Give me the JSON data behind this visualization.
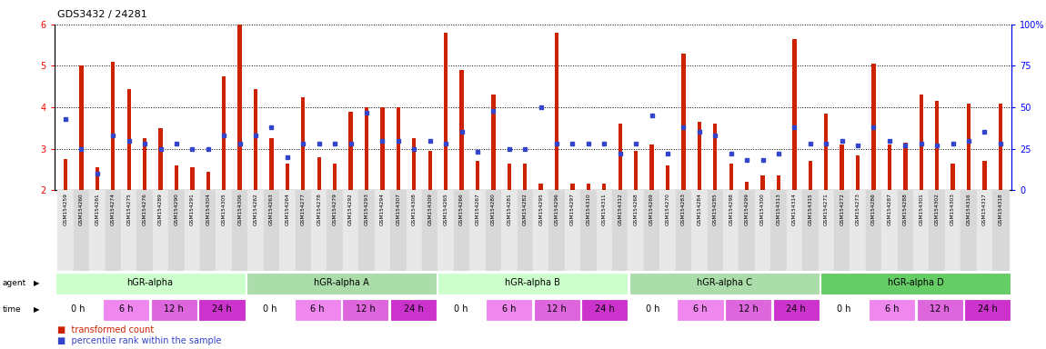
{
  "title": "GDS3432 / 24281",
  "ylim_left": [
    2,
    6
  ],
  "ylim_right": [
    0,
    100
  ],
  "yticks_left": [
    2,
    3,
    4,
    5,
    6
  ],
  "yticks_right": [
    0,
    25,
    50,
    75,
    100
  ],
  "samples": [
    "GSM154259",
    "GSM154260",
    "GSM154261",
    "GSM154274",
    "GSM154275",
    "GSM154276",
    "GSM154289",
    "GSM154290",
    "GSM154291",
    "GSM154304",
    "GSM154305",
    "GSM154306",
    "GSM154262",
    "GSM154263",
    "GSM154264",
    "GSM154277",
    "GSM154278",
    "GSM154279",
    "GSM154292",
    "GSM154293",
    "GSM154294",
    "GSM154307",
    "GSM154308",
    "GSM154309",
    "GSM154265",
    "GSM154266",
    "GSM154267",
    "GSM154280",
    "GSM154281",
    "GSM154282",
    "GSM154295",
    "GSM154296",
    "GSM154297",
    "GSM154310",
    "GSM154311",
    "GSM154312",
    "GSM154268",
    "GSM154269",
    "GSM154270",
    "GSM154283",
    "GSM154284",
    "GSM154285",
    "GSM154298",
    "GSM154299",
    "GSM154300",
    "GSM154313",
    "GSM154314",
    "GSM154315",
    "GSM154271",
    "GSM154272",
    "GSM154273",
    "GSM154286",
    "GSM154287",
    "GSM154288",
    "GSM154301",
    "GSM154302",
    "GSM154303",
    "GSM154316",
    "GSM154317",
    "GSM154318"
  ],
  "red_values": [
    2.75,
    5.0,
    2.55,
    5.1,
    4.45,
    3.25,
    3.5,
    2.6,
    2.55,
    2.45,
    4.75,
    6.0,
    4.45,
    3.25,
    2.65,
    4.25,
    2.8,
    2.65,
    3.9,
    4.0,
    4.0,
    4.0,
    3.25,
    2.95,
    5.8,
    4.9,
    2.7,
    4.3,
    2.65,
    2.65,
    2.15,
    5.8,
    2.15,
    2.15,
    2.15,
    3.6,
    2.95,
    3.1,
    2.6,
    5.3,
    3.65,
    3.6,
    2.65,
    2.2,
    2.35,
    2.35,
    5.65,
    2.7,
    3.85,
    3.1,
    2.85,
    5.05,
    3.1,
    3.15,
    4.3,
    4.15,
    2.65,
    4.1,
    2.7,
    4.1
  ],
  "blue_values_pct": [
    43,
    25,
    10,
    33,
    30,
    28,
    25,
    28,
    25,
    25,
    33,
    28,
    33,
    38,
    20,
    28,
    28,
    28,
    28,
    47,
    30,
    30,
    25,
    30,
    28,
    35,
    23,
    48,
    25,
    25,
    50,
    28,
    28,
    28,
    28,
    22,
    28,
    45,
    22,
    38,
    35,
    33,
    22,
    18,
    18,
    22,
    38,
    28,
    28,
    30,
    27,
    38,
    30,
    27,
    28,
    27,
    28,
    30,
    35,
    28
  ],
  "groups": [
    {
      "label": "hGR-alpha",
      "start": 0,
      "end": 12,
      "color": "#ccffcc"
    },
    {
      "label": "hGR-alpha A",
      "start": 12,
      "end": 24,
      "color": "#aaddaa"
    },
    {
      "label": "hGR-alpha B",
      "start": 24,
      "end": 36,
      "color": "#ccffcc"
    },
    {
      "label": "hGR-alpha C",
      "start": 36,
      "end": 48,
      "color": "#aaddaa"
    },
    {
      "label": "hGR-alpha D",
      "start": 48,
      "end": 60,
      "color": "#66cc66"
    }
  ],
  "time_labels": [
    "0 h",
    "6 h",
    "12 h",
    "24 h"
  ],
  "time_colors": [
    "#ffffff",
    "#ee88ee",
    "#dd66dd",
    "#cc33cc"
  ],
  "bar_color": "#cc2200",
  "blue_color": "#3344cc",
  "legend_red": "transformed count",
  "legend_blue": "percentile rank within the sample"
}
